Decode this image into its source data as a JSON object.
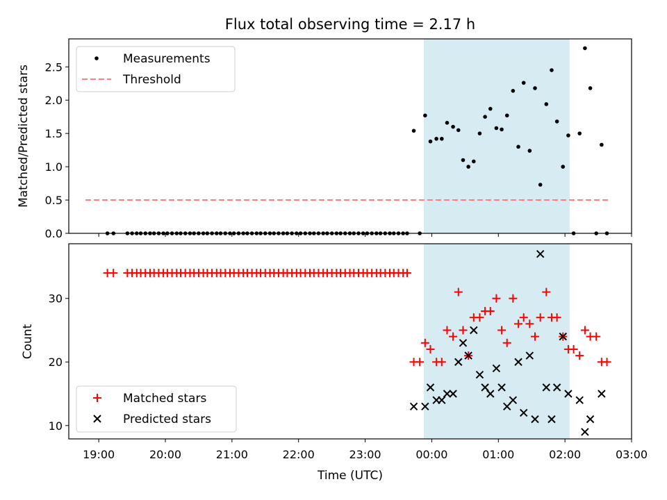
{
  "chart_data": [
    {
      "type": "scatter",
      "title": "Flux total observing time = 2.17 h",
      "xlabel": "",
      "ylabel": "Matched/Predicted stars",
      "ylim": [
        0,
        2.92
      ],
      "yticks": [
        "0.0",
        "0.5",
        "1.0",
        "1.5",
        "2.0",
        "2.5"
      ],
      "xlim": [
        18.55,
        27.0
      ],
      "highlight": {
        "start": 23.88,
        "end": 26.07,
        "color": "#add8e6"
      },
      "legend": {
        "placement": "top-left",
        "entries": [
          "Measurements",
          "Threshold"
        ]
      },
      "threshold": {
        "name": "Threshold",
        "value": 0.5,
        "x_start": 18.8,
        "x_end": 26.65,
        "color": "#ff7f7f"
      },
      "series": [
        {
          "name": "Measurements",
          "color": "#000000",
          "points": [
            [
              19.13,
              0
            ],
            [
              19.22,
              0
            ],
            [
              19.43,
              0
            ],
            [
              19.5,
              0
            ],
            [
              19.57,
              0
            ],
            [
              19.63,
              0
            ],
            [
              19.7,
              0
            ],
            [
              19.77,
              0
            ],
            [
              19.83,
              0
            ],
            [
              19.9,
              0
            ],
            [
              19.97,
              0
            ],
            [
              20.03,
              0
            ],
            [
              20.1,
              0
            ],
            [
              20.17,
              0
            ],
            [
              20.23,
              0
            ],
            [
              20.3,
              0
            ],
            [
              20.37,
              0
            ],
            [
              20.43,
              0
            ],
            [
              20.5,
              0
            ],
            [
              20.57,
              0
            ],
            [
              20.63,
              0
            ],
            [
              20.7,
              0
            ],
            [
              20.77,
              0
            ],
            [
              20.83,
              0
            ],
            [
              20.9,
              0
            ],
            [
              20.97,
              0
            ],
            [
              21.03,
              0
            ],
            [
              21.1,
              0
            ],
            [
              21.17,
              0
            ],
            [
              21.23,
              0
            ],
            [
              21.3,
              0
            ],
            [
              21.37,
              0
            ],
            [
              21.43,
              0
            ],
            [
              21.5,
              0
            ],
            [
              21.57,
              0
            ],
            [
              21.63,
              0
            ],
            [
              21.7,
              0
            ],
            [
              21.77,
              0
            ],
            [
              21.83,
              0
            ],
            [
              21.9,
              0
            ],
            [
              21.97,
              0
            ],
            [
              22.03,
              0
            ],
            [
              22.1,
              0
            ],
            [
              22.17,
              0
            ],
            [
              22.23,
              0
            ],
            [
              22.3,
              0
            ],
            [
              22.37,
              0
            ],
            [
              22.43,
              0
            ],
            [
              22.5,
              0
            ],
            [
              22.57,
              0
            ],
            [
              22.63,
              0
            ],
            [
              22.7,
              0
            ],
            [
              22.77,
              0
            ],
            [
              22.83,
              0
            ],
            [
              22.9,
              0
            ],
            [
              22.97,
              0
            ],
            [
              23.03,
              0
            ],
            [
              23.1,
              0
            ],
            [
              23.17,
              0
            ],
            [
              23.23,
              0
            ],
            [
              23.3,
              0
            ],
            [
              23.37,
              0
            ],
            [
              23.43,
              0
            ],
            [
              23.5,
              0
            ],
            [
              23.57,
              0
            ],
            [
              23.63,
              0
            ],
            [
              23.73,
              1.54
            ],
            [
              23.82,
              0
            ],
            [
              23.9,
              1.77
            ],
            [
              23.98,
              1.38
            ],
            [
              24.07,
              1.42
            ],
            [
              24.15,
              1.42
            ],
            [
              24.23,
              1.66
            ],
            [
              24.32,
              1.6
            ],
            [
              24.4,
              1.55
            ],
            [
              24.47,
              1.1
            ],
            [
              24.55,
              1.0
            ],
            [
              24.63,
              1.08
            ],
            [
              24.72,
              1.5
            ],
            [
              24.8,
              1.75
            ],
            [
              24.88,
              1.87
            ],
            [
              24.97,
              1.58
            ],
            [
              25.05,
              1.56
            ],
            [
              25.13,
              1.77
            ],
            [
              25.22,
              2.14
            ],
            [
              25.3,
              1.3
            ],
            [
              25.38,
              2.26
            ],
            [
              25.47,
              1.24
            ],
            [
              25.55,
              2.18
            ],
            [
              25.63,
              0.73
            ],
            [
              25.72,
              1.94
            ],
            [
              25.8,
              2.45
            ],
            [
              25.88,
              1.68
            ],
            [
              25.97,
              1.0
            ],
            [
              26.05,
              1.47
            ],
            [
              26.13,
              0
            ],
            [
              26.22,
              1.5
            ],
            [
              26.3,
              2.78
            ],
            [
              26.38,
              2.18
            ],
            [
              26.47,
              0
            ],
            [
              26.55,
              1.33
            ],
            [
              26.63,
              0
            ]
          ]
        }
      ]
    },
    {
      "type": "scatter",
      "title": "",
      "xlabel": "Time (UTC)",
      "ylabel": "Count",
      "ylim": [
        7.9,
        38.6
      ],
      "yticks": [
        "10",
        "20",
        "30"
      ],
      "xlim": [
        18.55,
        27.0
      ],
      "xticks": [
        "19:00",
        "20:00",
        "21:00",
        "22:00",
        "23:00",
        "00:00",
        "01:00",
        "02:00",
        "03:00"
      ],
      "highlight": {
        "start": 23.88,
        "end": 26.07,
        "color": "#add8e6"
      },
      "legend": {
        "placement": "bottom-left",
        "entries": [
          "Matched stars",
          "Predicted stars"
        ]
      },
      "series": [
        {
          "name": "Matched stars",
          "marker": "plus",
          "color": "#ff0000",
          "points": [
            [
              19.13,
              34
            ],
            [
              19.22,
              34
            ],
            [
              19.43,
              34
            ],
            [
              19.5,
              34
            ],
            [
              19.57,
              34
            ],
            [
              19.63,
              34
            ],
            [
              19.7,
              34
            ],
            [
              19.77,
              34
            ],
            [
              19.83,
              34
            ],
            [
              19.9,
              34
            ],
            [
              19.97,
              34
            ],
            [
              20.03,
              34
            ],
            [
              20.1,
              34
            ],
            [
              20.17,
              34
            ],
            [
              20.23,
              34
            ],
            [
              20.3,
              34
            ],
            [
              20.37,
              34
            ],
            [
              20.43,
              34
            ],
            [
              20.5,
              34
            ],
            [
              20.57,
              34
            ],
            [
              20.63,
              34
            ],
            [
              20.7,
              34
            ],
            [
              20.77,
              34
            ],
            [
              20.83,
              34
            ],
            [
              20.9,
              34
            ],
            [
              20.97,
              34
            ],
            [
              21.03,
              34
            ],
            [
              21.1,
              34
            ],
            [
              21.17,
              34
            ],
            [
              21.23,
              34
            ],
            [
              21.3,
              34
            ],
            [
              21.37,
              34
            ],
            [
              21.43,
              34
            ],
            [
              21.5,
              34
            ],
            [
              21.57,
              34
            ],
            [
              21.63,
              34
            ],
            [
              21.7,
              34
            ],
            [
              21.77,
              34
            ],
            [
              21.83,
              34
            ],
            [
              21.9,
              34
            ],
            [
              21.97,
              34
            ],
            [
              22.03,
              34
            ],
            [
              22.1,
              34
            ],
            [
              22.17,
              34
            ],
            [
              22.23,
              34
            ],
            [
              22.3,
              34
            ],
            [
              22.37,
              34
            ],
            [
              22.43,
              34
            ],
            [
              22.5,
              34
            ],
            [
              22.57,
              34
            ],
            [
              22.63,
              34
            ],
            [
              22.7,
              34
            ],
            [
              22.77,
              34
            ],
            [
              22.83,
              34
            ],
            [
              22.9,
              34
            ],
            [
              22.97,
              34
            ],
            [
              23.03,
              34
            ],
            [
              23.1,
              34
            ],
            [
              23.17,
              34
            ],
            [
              23.23,
              34
            ],
            [
              23.3,
              34
            ],
            [
              23.37,
              34
            ],
            [
              23.43,
              34
            ],
            [
              23.5,
              34
            ],
            [
              23.57,
              34
            ],
            [
              23.63,
              34
            ],
            [
              23.73,
              20
            ],
            [
              23.82,
              20
            ],
            [
              23.9,
              23
            ],
            [
              23.98,
              22
            ],
            [
              24.07,
              20
            ],
            [
              24.15,
              20
            ],
            [
              24.23,
              25
            ],
            [
              24.32,
              24
            ],
            [
              24.4,
              31
            ],
            [
              24.47,
              25
            ],
            [
              24.55,
              21
            ],
            [
              24.63,
              27
            ],
            [
              24.72,
              27
            ],
            [
              24.8,
              28
            ],
            [
              24.88,
              28
            ],
            [
              24.97,
              30
            ],
            [
              25.05,
              25
            ],
            [
              25.13,
              23
            ],
            [
              25.22,
              30
            ],
            [
              25.3,
              26
            ],
            [
              25.38,
              27
            ],
            [
              25.47,
              26
            ],
            [
              25.55,
              24
            ],
            [
              25.63,
              27
            ],
            [
              25.72,
              31
            ],
            [
              25.8,
              27
            ],
            [
              25.88,
              27
            ],
            [
              25.97,
              24
            ],
            [
              26.05,
              22
            ],
            [
              26.13,
              22
            ],
            [
              26.22,
              21
            ],
            [
              26.3,
              25
            ],
            [
              26.38,
              24
            ],
            [
              26.47,
              24
            ],
            [
              26.55,
              20
            ],
            [
              26.63,
              20
            ]
          ]
        },
        {
          "name": "Predicted stars",
          "marker": "x",
          "color": "#000000",
          "points": [
            [
              23.73,
              13
            ],
            [
              23.9,
              13
            ],
            [
              23.98,
              16
            ],
            [
              24.07,
              14
            ],
            [
              24.15,
              14
            ],
            [
              24.23,
              15
            ],
            [
              24.32,
              15
            ],
            [
              24.4,
              20
            ],
            [
              24.47,
              23
            ],
            [
              24.55,
              21
            ],
            [
              24.63,
              25
            ],
            [
              24.72,
              18
            ],
            [
              24.8,
              16
            ],
            [
              24.88,
              15
            ],
            [
              24.97,
              19
            ],
            [
              25.05,
              16
            ],
            [
              25.13,
              13
            ],
            [
              25.22,
              14
            ],
            [
              25.3,
              20
            ],
            [
              25.38,
              12
            ],
            [
              25.47,
              21
            ],
            [
              25.55,
              11
            ],
            [
              25.63,
              37
            ],
            [
              25.72,
              16
            ],
            [
              25.8,
              11
            ],
            [
              25.88,
              16
            ],
            [
              25.97,
              24
            ],
            [
              26.05,
              15
            ],
            [
              26.22,
              14
            ],
            [
              26.3,
              9
            ],
            [
              26.38,
              11
            ],
            [
              26.55,
              15
            ]
          ]
        }
      ]
    }
  ]
}
